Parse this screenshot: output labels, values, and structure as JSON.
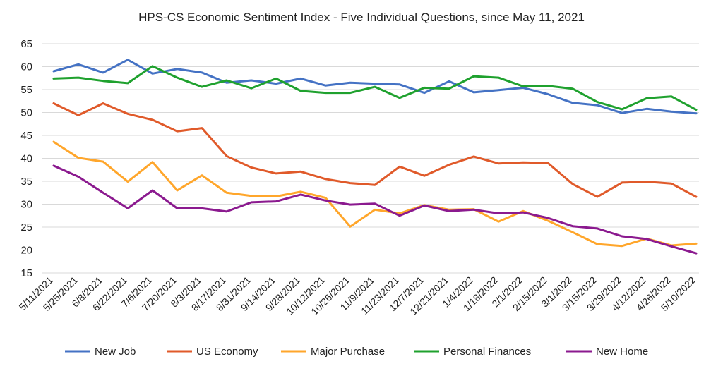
{
  "chart_data": {
    "type": "line",
    "title": "HPS-CS Economic Sentiment Index - Five Individual Questions, since May 11, 2021",
    "xlabel": "",
    "ylabel": "",
    "ylim": [
      15,
      65
    ],
    "yticks": [
      15,
      20,
      25,
      30,
      35,
      40,
      45,
      50,
      55,
      60,
      65
    ],
    "grid": true,
    "legend": "bottom",
    "categories": [
      "5/11/2021",
      "5/25/2021",
      "6/8/2021",
      "6/22/2021",
      "7/6/2021",
      "7/20/2021",
      "8/3/2021",
      "8/17/2021",
      "8/31/2021",
      "9/14/2021",
      "9/28/2021",
      "10/12/2021",
      "10/26/2021",
      "11/9/2021",
      "11/23/2021",
      "12/7/2021",
      "12/21/2021",
      "1/4/2022",
      "1/18/2022",
      "2/1/2022",
      "2/15/2022",
      "3/1/2022",
      "3/15/2022",
      "3/29/2022",
      "4/12/2022",
      "4/26/2022",
      "5/10/2022"
    ],
    "series": [
      {
        "name": "New Job",
        "color": "#4472C4",
        "values": [
          59.0,
          60.5,
          58.7,
          61.5,
          58.5,
          59.5,
          58.7,
          56.5,
          57.0,
          56.3,
          57.4,
          55.9,
          56.5,
          56.3,
          56.1,
          54.3,
          56.8,
          54.4,
          54.9,
          55.4,
          54.0,
          52.1,
          51.6,
          49.9,
          50.8,
          50.2,
          49.8
        ]
      },
      {
        "name": "US Economy",
        "color": "#E05A2A",
        "values": [
          52.0,
          49.4,
          52.0,
          49.7,
          48.4,
          45.9,
          46.6,
          40.5,
          38.0,
          36.7,
          37.1,
          35.5,
          34.6,
          34.2,
          38.2,
          36.2,
          38.6,
          40.4,
          38.9,
          39.1,
          39.0,
          34.4,
          31.6,
          34.7,
          34.9,
          34.5,
          31.6
        ]
      },
      {
        "name": "Major Purchase",
        "color": "#FFA62B",
        "values": [
          43.6,
          40.1,
          39.3,
          34.9,
          39.2,
          33.0,
          36.3,
          32.5,
          31.8,
          31.7,
          32.7,
          31.4,
          25.1,
          28.8,
          28.0,
          29.8,
          28.8,
          28.9,
          26.2,
          28.5,
          26.4,
          23.9,
          21.3,
          20.9,
          22.5,
          21.0,
          21.4
        ]
      },
      {
        "name": "Personal Finances",
        "color": "#1FA12E",
        "values": [
          57.4,
          57.6,
          56.9,
          56.4,
          60.1,
          57.6,
          55.6,
          57.0,
          55.3,
          57.4,
          54.7,
          54.3,
          54.3,
          55.6,
          53.2,
          55.4,
          55.2,
          57.9,
          57.6,
          55.7,
          55.8,
          55.2,
          52.3,
          50.7,
          53.1,
          53.5,
          50.6
        ]
      },
      {
        "name": "New Home",
        "color": "#8B1A8F",
        "values": [
          38.4,
          36.0,
          32.5,
          29.1,
          33.0,
          29.1,
          29.1,
          28.4,
          30.4,
          30.6,
          32.1,
          30.8,
          29.9,
          30.1,
          27.5,
          29.7,
          28.5,
          28.8,
          28.0,
          28.2,
          27.0,
          25.2,
          24.7,
          23.0,
          22.4,
          20.8,
          19.3
        ]
      }
    ]
  }
}
